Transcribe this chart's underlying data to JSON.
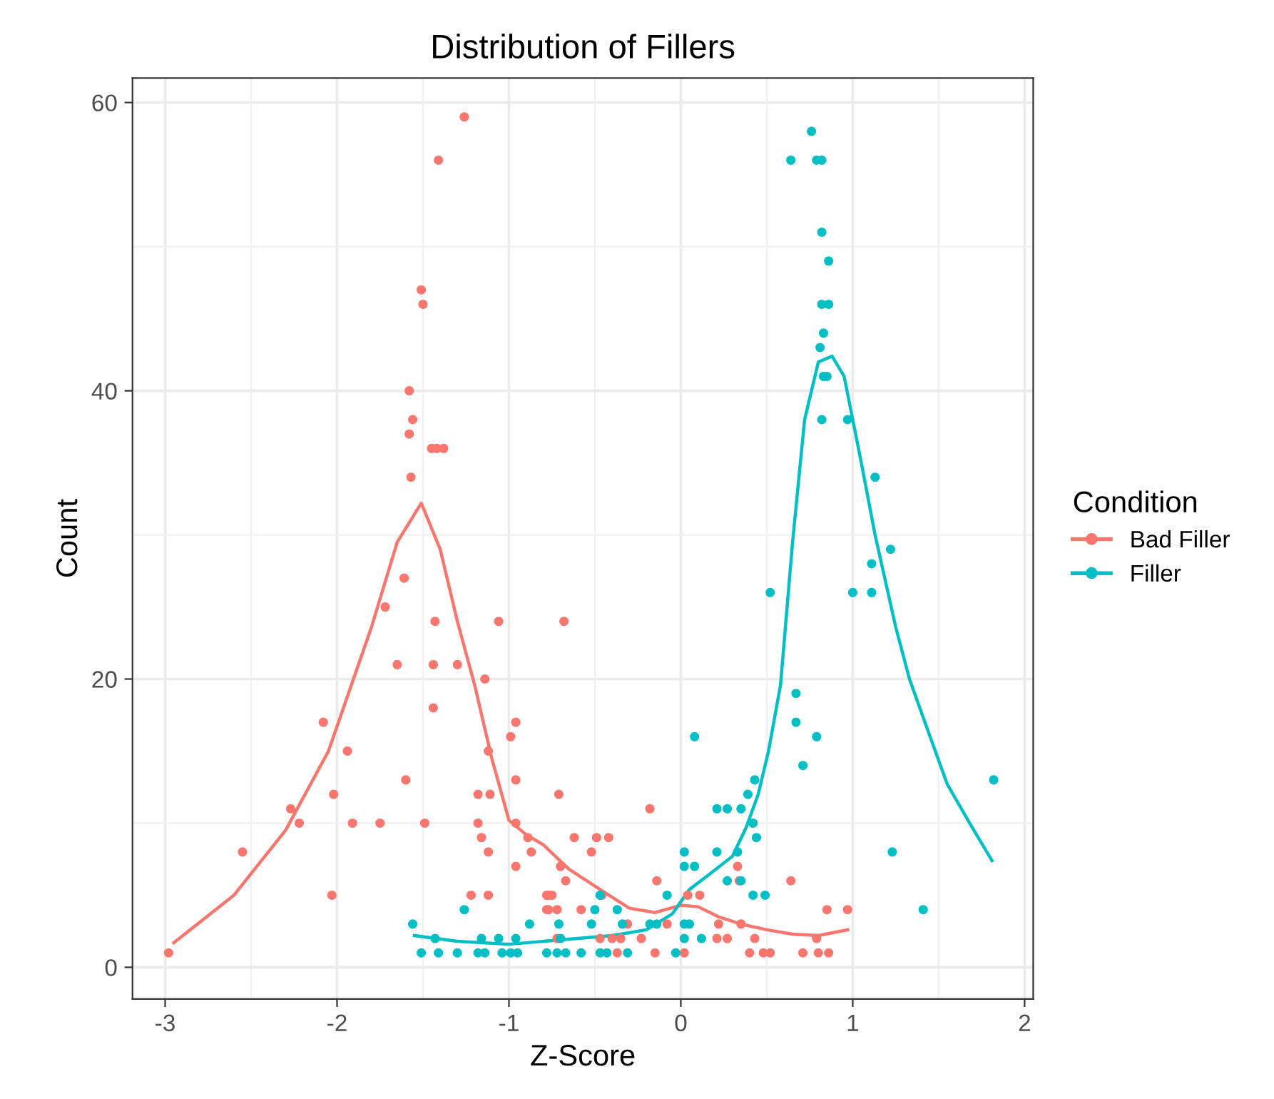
{
  "chart_data": {
    "type": "scatter",
    "title": "Distribution of Fillers",
    "xlabel": "Z-Score",
    "ylabel": "Count",
    "legend_title": "Condition",
    "xlim": [
      -3.19,
      2.05
    ],
    "ylim": [
      -2.2,
      61.7
    ],
    "xticks": [
      -3,
      -2,
      -1,
      0,
      1,
      2
    ],
    "yticks": [
      0,
      20,
      40,
      60
    ],
    "grid": true,
    "legend": "right",
    "series": [
      {
        "name": "Bad Filler",
        "marker": "circle",
        "color": "#f8766d",
        "x": [
          -2.98,
          -2.55,
          -2.27,
          -2.22,
          -2.08,
          -1.94,
          -2.02,
          -1.91,
          -2.03,
          -1.75,
          -1.72,
          -1.61,
          -1.65,
          -1.6,
          -1.49,
          -1.43,
          -1.44,
          -1.3,
          -1.44,
          -1.06,
          -1.14,
          -1.18,
          -1.11,
          -1.18,
          -1.16,
          -1.12,
          -1.22,
          -1.12,
          -1.12,
          -0.96,
          -0.99,
          -0.96,
          -0.96,
          -0.89,
          -0.87,
          -0.96,
          -0.77,
          -0.77,
          -1.26,
          -1.41,
          -1.51,
          -1.5,
          -1.58,
          -1.56,
          -1.58,
          -1.45,
          -1.42,
          -1.38,
          -1.57,
          -0.68,
          -0.71,
          -0.62,
          -0.49,
          -0.42,
          -0.52,
          -0.7,
          -0.67,
          -0.78,
          -0.75,
          -0.78,
          -0.72,
          -0.58,
          -0.46,
          -0.18,
          -0.14,
          0.04,
          0.11,
          0.33,
          0.34,
          0.22,
          0.35,
          0.21,
          0.27,
          0.43,
          0.4,
          0.48,
          0.52,
          0.02,
          -0.15,
          -0.37,
          -0.47,
          -0.4,
          -0.35,
          -0.31,
          -0.08,
          -0.23,
          -0.72,
          0.64,
          0.85,
          0.97,
          0.79,
          0.71,
          0.8,
          0.86
        ],
        "values": [
          1,
          8,
          11,
          10,
          17,
          15,
          12,
          10,
          5,
          10,
          25,
          27,
          21,
          13,
          10,
          24,
          21,
          21,
          18,
          24,
          20,
          12,
          12,
          10,
          9,
          8,
          5,
          5,
          15,
          17,
          16,
          13,
          10,
          9,
          8,
          7,
          5,
          4,
          59,
          56,
          47,
          46,
          40,
          38,
          37,
          36,
          36,
          36,
          34,
          24,
          12,
          9,
          9,
          9,
          8,
          7,
          6,
          5,
          5,
          4,
          4,
          4,
          5,
          11,
          6,
          5,
          5,
          7,
          6,
          3,
          3,
          2,
          2,
          2,
          1,
          1,
          1,
          1,
          1,
          1,
          2,
          2,
          2,
          3,
          3,
          2,
          2,
          6,
          4,
          4,
          2,
          1,
          1,
          1
        ]
      },
      {
        "type": "line",
        "marker": "none",
        "color": "#f8766d",
        "x": [
          -2.95,
          -2.6,
          -2.3,
          -2.05,
          -1.8,
          -1.65,
          -1.51,
          -1.4,
          -1.3,
          -1.2,
          -1.1,
          -1.0,
          -0.9,
          -0.8,
          -0.65,
          -0.47,
          -0.3,
          -0.15,
          0.0,
          0.1,
          0.22,
          0.35,
          0.5,
          0.65,
          0.8,
          0.97
        ],
        "values": [
          1.7,
          5,
          9.5,
          15,
          23.6,
          29.5,
          32.2,
          29,
          24,
          19.6,
          14.5,
          10.2,
          9.2,
          8.5,
          6.8,
          5.4,
          4.1,
          3.8,
          4.3,
          4.2,
          3.5,
          3,
          2.6,
          2.3,
          2.2,
          2.6
        ]
      },
      {
        "name": "Filler",
        "marker": "circle",
        "color": "#00bfc4",
        "x": [
          0.76,
          0.64,
          0.79,
          0.82,
          0.82,
          0.86,
          0.82,
          0.86,
          0.83,
          0.81,
          0.83,
          0.85,
          0.82,
          0.97,
          1.13,
          1.22,
          1.11,
          0.52,
          1.0,
          1.11,
          0.67,
          0.67,
          0.79,
          0.71,
          1.82,
          1.23,
          1.41,
          0.08,
          0.43,
          0.39,
          0.21,
          0.27,
          0.35,
          0.42,
          0.44,
          0.33,
          0.21,
          0.02,
          0.02,
          0.08,
          0.27,
          0.35,
          0.42,
          0.49,
          0.05,
          0.12,
          -0.08,
          -0.47,
          -0.5,
          -0.37,
          -0.88,
          -0.71,
          -0.52,
          -0.34,
          -0.18,
          -0.14,
          0.02,
          0.02,
          -1.16,
          -1.06,
          -0.96,
          -0.7,
          -1.18,
          -1.14,
          -1.04,
          -0.95,
          -0.78,
          -0.72,
          -0.67,
          -0.58,
          -0.47,
          -0.31,
          -0.03,
          -1.56,
          -1.26,
          -1.51,
          -1.41,
          -1.3,
          -0.99,
          -1.43,
          -0.43
        ],
        "values": [
          58,
          56,
          56,
          56,
          51,
          49,
          46,
          46,
          44,
          43,
          41,
          41,
          38,
          38,
          34,
          29,
          28,
          26,
          26,
          26,
          19,
          17,
          16,
          14,
          13,
          8,
          4,
          16,
          13,
          12,
          11,
          11,
          11,
          10,
          9,
          8,
          8,
          8,
          7,
          7,
          6,
          6,
          5,
          5,
          3,
          2,
          5,
          5,
          4,
          4,
          3,
          3,
          3,
          3,
          3,
          3,
          3,
          2,
          2,
          2,
          2,
          2,
          1,
          1,
          1,
          1,
          1,
          1,
          1,
          1,
          1,
          1,
          1,
          3,
          4,
          1,
          1,
          1,
          1,
          2,
          1
        ]
      },
      {
        "type": "line",
        "marker": "none",
        "color": "#00bfc4",
        "x": [
          -1.55,
          -1.3,
          -1.0,
          -0.7,
          -0.4,
          -0.2,
          -0.05,
          0.05,
          0.16,
          0.3,
          0.38,
          0.45,
          0.51,
          0.58,
          0.65,
          0.72,
          0.8,
          0.88,
          0.95,
          1.05,
          1.13,
          1.25,
          1.33,
          1.45,
          1.55,
          1.68,
          1.81
        ],
        "values": [
          2.2,
          1.8,
          1.6,
          1.9,
          2.2,
          2.6,
          3.7,
          5.4,
          6.4,
          7.7,
          9.7,
          12,
          15,
          19.6,
          29.5,
          38,
          42,
          42.4,
          41,
          35,
          30,
          23.6,
          20,
          16,
          12.7,
          10,
          7.4
        ]
      }
    ]
  }
}
